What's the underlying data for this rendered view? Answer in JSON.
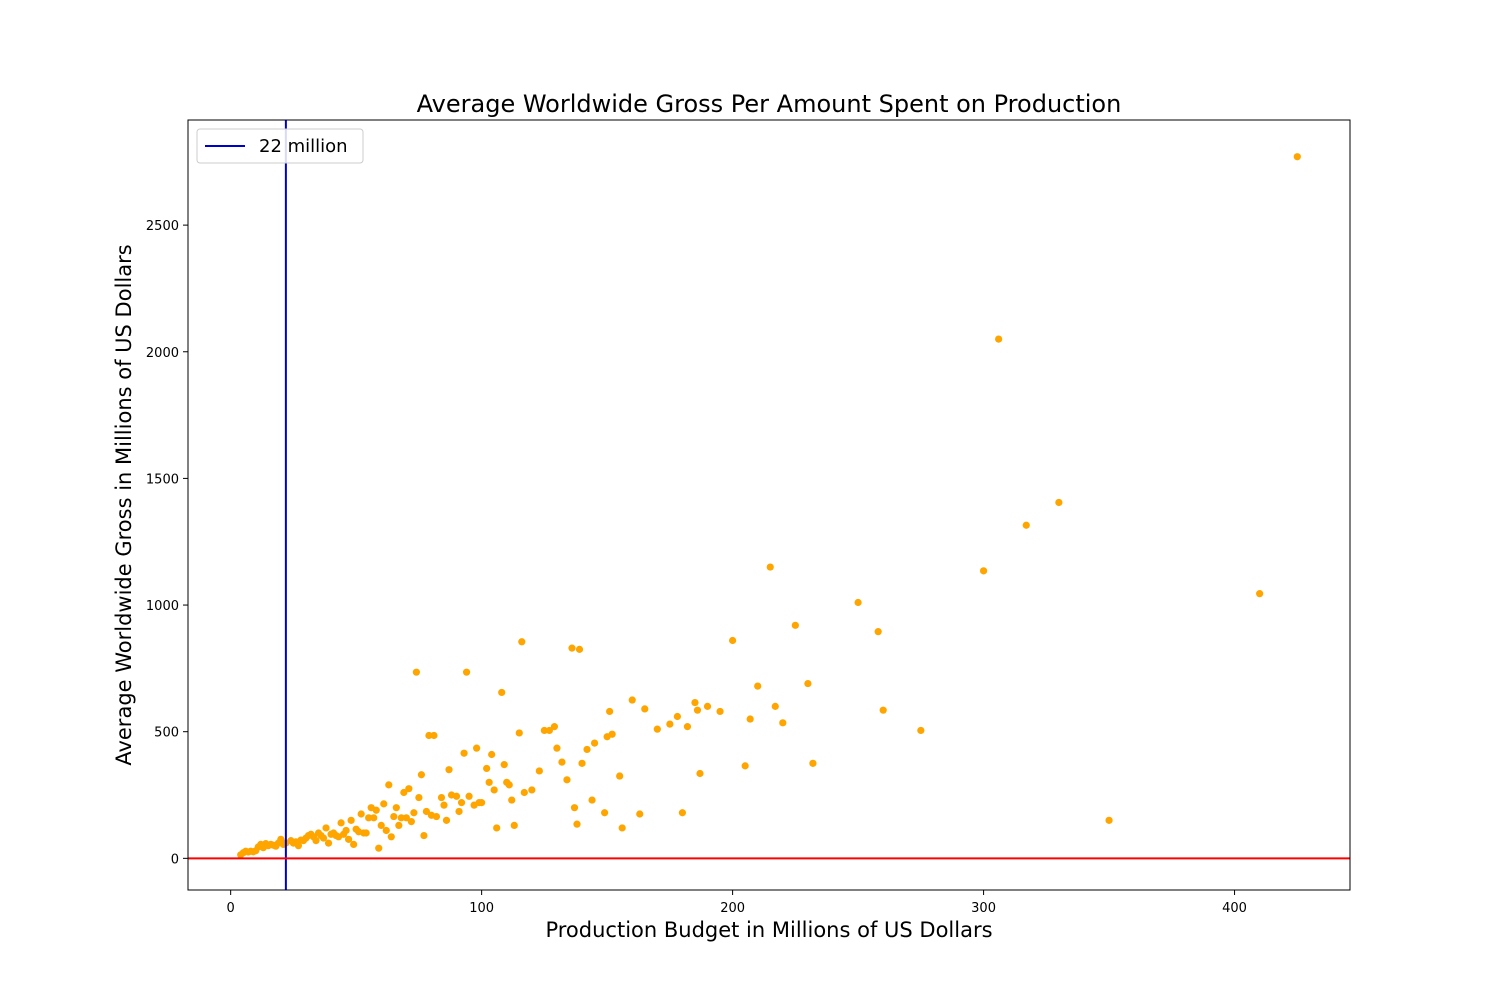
{
  "chart_data": {
    "type": "scatter",
    "title": "Average Worldwide Gross Per Amount Spent on Production",
    "xlabel": "Production Budget in Millions of US Dollars",
    "ylabel": "Average Worldwide Gross in Millions of US Dollars",
    "xlim": [
      -17,
      446
    ],
    "ylim": [
      -125,
      2915
    ],
    "xticks": [
      0,
      100,
      200,
      300,
      400
    ],
    "yticks": [
      0,
      500,
      1000,
      1500,
      2000,
      2500
    ],
    "grid": false,
    "legend_position": "top-left",
    "point_color": "#ffa500",
    "reference_lines": [
      {
        "orientation": "vertical",
        "value": 22,
        "color": "#0000cd",
        "label": "22 million"
      },
      {
        "orientation": "horizontal",
        "value": 0,
        "color": "#ff0000",
        "label": ""
      }
    ],
    "series": [
      {
        "name": "films",
        "x": [
          4,
          5,
          6,
          7,
          8,
          9,
          10,
          11,
          12,
          13,
          14,
          15,
          16,
          17,
          18,
          19,
          20,
          21,
          22,
          24,
          25,
          26,
          27,
          28,
          29,
          30,
          31,
          32,
          33,
          34,
          35,
          36,
          37,
          38,
          39,
          40,
          41,
          42,
          43,
          44,
          45,
          46,
          47,
          48,
          49,
          50,
          51,
          52,
          53,
          54,
          55,
          56,
          57,
          58,
          59,
          60,
          61,
          62,
          63,
          64,
          65,
          66,
          67,
          68,
          69,
          70,
          71,
          72,
          73,
          74,
          75,
          76,
          77,
          78,
          79,
          80,
          81,
          82,
          84,
          85,
          86,
          87,
          88,
          90,
          91,
          92,
          93,
          94,
          95,
          97,
          98,
          99,
          100,
          102,
          103,
          104,
          105,
          106,
          108,
          109,
          110,
          111,
          112,
          113,
          115,
          116,
          117,
          120,
          123,
          125,
          127,
          129,
          130,
          132,
          134,
          136,
          137,
          138,
          139,
          140,
          142,
          144,
          145,
          149,
          150,
          151,
          152,
          155,
          156,
          160,
          163,
          165,
          170,
          175,
          178,
          180,
          182,
          185,
          186,
          187,
          190,
          195,
          200,
          205,
          207,
          210,
          215,
          217,
          220,
          225,
          230,
          232,
          250,
          258,
          260,
          275,
          300,
          306,
          317,
          330,
          350,
          410,
          425
        ],
        "y": [
          14,
          22,
          28,
          25,
          28,
          26,
          30,
          45,
          55,
          42,
          58,
          50,
          55,
          52,
          48,
          60,
          75,
          55,
          60,
          70,
          60,
          65,
          50,
          72,
          70,
          80,
          90,
          95,
          85,
          70,
          100,
          90,
          80,
          120,
          60,
          95,
          100,
          90,
          85,
          140,
          95,
          110,
          75,
          150,
          55,
          115,
          105,
          175,
          100,
          100,
          160,
          200,
          160,
          190,
          40,
          130,
          215,
          110,
          290,
          85,
          165,
          200,
          130,
          160,
          260,
          160,
          275,
          145,
          180,
          735,
          240,
          330,
          90,
          185,
          485,
          170,
          485,
          165,
          240,
          210,
          150,
          350,
          250,
          245,
          185,
          220,
          415,
          735,
          245,
          210,
          435,
          220,
          220,
          355,
          300,
          410,
          270,
          120,
          655,
          370,
          300,
          290,
          230,
          130,
          495,
          855,
          260,
          270,
          345,
          505,
          505,
          520,
          435,
          380,
          310,
          830,
          200,
          135,
          825,
          375,
          430,
          230,
          455,
          180,
          480,
          580,
          490,
          325,
          120,
          625,
          175,
          590,
          510,
          530,
          560,
          180,
          520,
          615,
          585,
          335,
          600,
          580,
          860,
          365,
          550,
          680,
          1150,
          600,
          535,
          920,
          690,
          375,
          1010,
          895,
          585,
          505,
          1135,
          2050,
          1315,
          1405,
          150,
          1045,
          2770
        ]
      }
    ]
  }
}
